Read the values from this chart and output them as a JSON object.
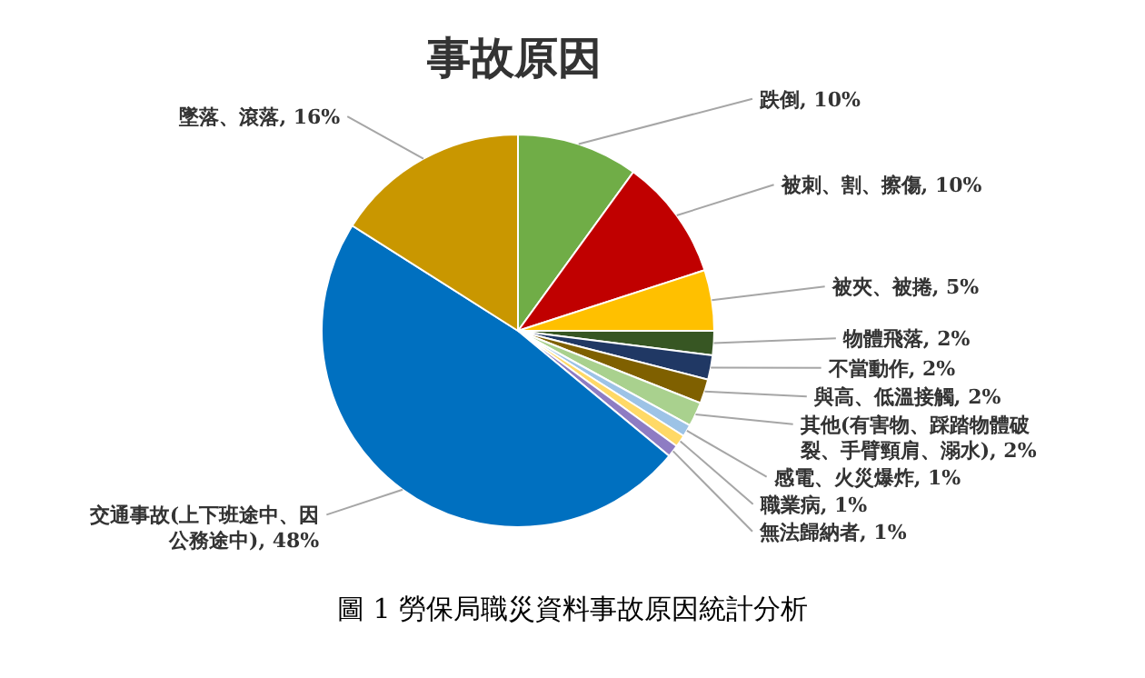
{
  "chart_data": {
    "type": "pie",
    "title": "事故原因",
    "categories": [
      "跌倒",
      "被刺、割、擦傷",
      "被夾、被捲",
      "物體飛落",
      "不當動作",
      "與高、低溫接觸",
      "其他(有害物、踩踏物體破裂、手臂頸肩、溺水)",
      "感電、火災爆炸",
      "職業病",
      "無法歸納者",
      "交通事故(上下班途中、因公務途中)",
      "墜落、滾落"
    ],
    "values": [
      10,
      10,
      5,
      2,
      2,
      2,
      2,
      1,
      1,
      1,
      48,
      16
    ],
    "value_labels": [
      "10%",
      "10%",
      "5%",
      "2%",
      "2%",
      "2%",
      "2%",
      "1%",
      "1%",
      "1%",
      "48%",
      "16%"
    ],
    "colors": [
      "#70ad47",
      "#c00000",
      "#ffc000",
      "#375623",
      "#203864",
      "#7f6000",
      "#a9d18e",
      "#9dc3e6",
      "#ffd966",
      "#8e7cc3",
      "#0070c0",
      "#c99700"
    ],
    "annotations": [
      "圖 1 勞保局職災資料事故原因統計分析"
    ],
    "legend": false
  }
}
